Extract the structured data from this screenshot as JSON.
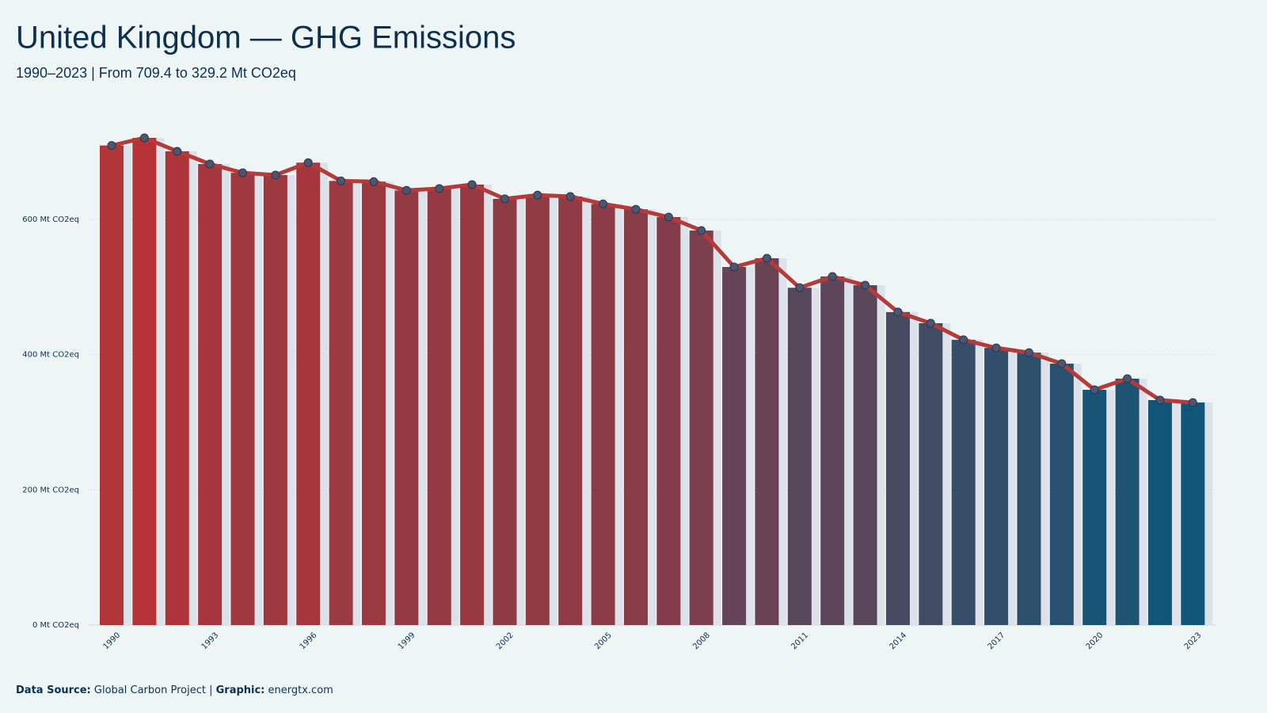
{
  "chart_data": {
    "type": "bar",
    "title": "United Kingdom — GHG Emissions",
    "subtitle": "1990–2023 | From 709.4 to 329.2 Mt CO2eq",
    "source_label": "Data Source:",
    "source": "Global Carbon Project |",
    "graphic_label": "Graphic:",
    "graphic": "energtx.com",
    "categories": [
      "1990",
      null,
      null,
      "1993",
      null,
      null,
      "1996",
      null,
      null,
      "1999",
      null,
      null,
      "2002",
      null,
      null,
      "2005",
      null,
      null,
      "2008",
      null,
      null,
      "2011",
      null,
      null,
      "2014",
      null,
      null,
      "2017",
      null,
      null,
      "2020",
      null,
      null,
      "2023"
    ],
    "values": [
      709.4,
      720.7,
      700.8,
      682,
      669,
      665.6,
      684,
      657,
      656,
      643,
      645.7,
      651.6,
      630.5,
      636,
      634,
      623,
      615,
      603.5,
      583.6,
      529.7,
      542.6,
      499,
      515.6,
      502.7,
      463,
      446.5,
      422,
      410,
      403,
      386.7,
      348,
      364.5,
      332.8,
      329.2
    ],
    "bar_color_scale": {
      "low": "#0f5678",
      "high": "#b53336"
    },
    "line_color": "#b53a3a",
    "marker_color": "#4b5670",
    "ylim": [
      0,
      750
    ],
    "yticks": [
      {
        "value": 0,
        "label": "0 Mt CO2eq"
      },
      {
        "value": 200,
        "label": "200 Mt CO2eq"
      },
      {
        "value": 400,
        "label": "400 Mt CO2eq"
      },
      {
        "value": 600,
        "label": "600 Mt CO2eq"
      }
    ],
    "grid": true
  }
}
